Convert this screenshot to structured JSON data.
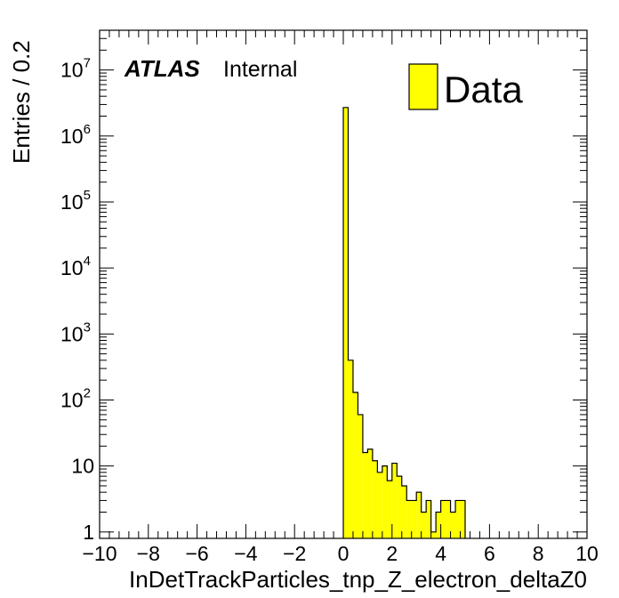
{
  "chart_data": {
    "type": "bar",
    "xlabel": "InDetTrackParticles_tnp_Z_electron_deltaZ0",
    "ylabel": "Entries / 0.2",
    "xlim": [
      -10,
      10
    ],
    "ylim": [
      0.8,
      40000000
    ],
    "yscale": "log",
    "grid": false,
    "legend_position": "top-right",
    "experiment_label": "ATLAS",
    "status_label": "Internal",
    "x_ticks": [
      "−10",
      "−8",
      "−6",
      "−4",
      "−2",
      "0",
      "2",
      "4",
      "6",
      "8",
      "10"
    ],
    "x_tick_values": [
      -10,
      -8,
      -6,
      -4,
      -2,
      0,
      2,
      4,
      6,
      8,
      10
    ],
    "y_ticks": [
      {
        "value": 1,
        "base": "1",
        "exp": ""
      },
      {
        "value": 10,
        "base": "10",
        "exp": ""
      },
      {
        "value": 100,
        "base": "10",
        "exp": "2"
      },
      {
        "value": 1000,
        "base": "10",
        "exp": "3"
      },
      {
        "value": 10000,
        "base": "10",
        "exp": "4"
      },
      {
        "value": 100000,
        "base": "10",
        "exp": "5"
      },
      {
        "value": 1000000,
        "base": "10",
        "exp": "6"
      },
      {
        "value": 10000000,
        "base": "10",
        "exp": "7"
      }
    ],
    "bin_width": 0.2,
    "series": [
      {
        "name": "Data",
        "color": "#ffff00",
        "edge_color": "#000000",
        "bins": [
          {
            "x": 0.0,
            "y": 2700000
          },
          {
            "x": 0.2,
            "y": 400
          },
          {
            "x": 0.4,
            "y": 130
          },
          {
            "x": 0.6,
            "y": 60
          },
          {
            "x": 0.8,
            "y": 16
          },
          {
            "x": 1.0,
            "y": 18
          },
          {
            "x": 1.2,
            "y": 12
          },
          {
            "x": 1.4,
            "y": 8
          },
          {
            "x": 1.6,
            "y": 10
          },
          {
            "x": 1.8,
            "y": 6
          },
          {
            "x": 2.0,
            "y": 11
          },
          {
            "x": 2.2,
            "y": 7
          },
          {
            "x": 2.4,
            "y": 5
          },
          {
            "x": 2.6,
            "y": 3
          },
          {
            "x": 2.8,
            "y": 3
          },
          {
            "x": 3.0,
            "y": 4
          },
          {
            "x": 3.2,
            "y": 2
          },
          {
            "x": 3.4,
            "y": 3
          },
          {
            "x": 3.6,
            "y": 1
          },
          {
            "x": 3.8,
            "y": 2
          },
          {
            "x": 4.0,
            "y": 3
          },
          {
            "x": 4.2,
            "y": 3
          },
          {
            "x": 4.4,
            "y": 2
          },
          {
            "x": 4.6,
            "y": 3
          },
          {
            "x": 4.8,
            "y": 3
          }
        ]
      }
    ]
  }
}
